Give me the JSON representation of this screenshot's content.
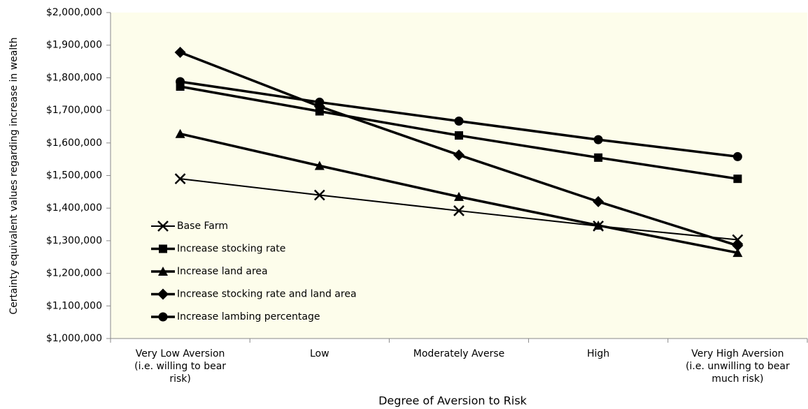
{
  "chart_data": {
    "type": "line",
    "y_label": "Certainty equivalent values regarding increase in wealth",
    "x_label": "Degree of Aversion to Risk",
    "categories": [
      [
        "Very Low Aversion",
        "(i.e. willing to bear",
        "risk)"
      ],
      [
        "Low"
      ],
      [
        "Moderately Averse"
      ],
      [
        "High"
      ],
      [
        "Very High Aversion",
        "(i.e. unwilling to bear",
        "much risk)"
      ]
    ],
    "series": [
      {
        "name": "Base Farm",
        "color": "#000000",
        "marker": "x",
        "linewidth": 2,
        "values": [
          1490000,
          1440000,
          1392000,
          1345000,
          1303000
        ]
      },
      {
        "name": "Increase stocking rate",
        "color": "#000000",
        "marker": "square",
        "linewidth": 3.5,
        "values": [
          1773000,
          1697000,
          1623000,
          1555000,
          1490000
        ]
      },
      {
        "name": "Increase land area",
        "color": "#000000",
        "marker": "triangle",
        "linewidth": 3.5,
        "values": [
          1628000,
          1530000,
          1435000,
          1347000,
          1263000
        ]
      },
      {
        "name": "Increase stocking rate and land area",
        "color": "#000000",
        "marker": "diamond",
        "linewidth": 3.5,
        "values": [
          1878000,
          1712000,
          1563000,
          1420000,
          1285000
        ]
      },
      {
        "name": "Increase lambing percentage",
        "color": "#000000",
        "marker": "circle",
        "linewidth": 3.5,
        "values": [
          1788000,
          1725000,
          1667000,
          1610000,
          1558000
        ]
      }
    ],
    "ylim": [
      1000000,
      2000000
    ],
    "yticks": [
      {
        "value": 1000000,
        "label": "$1,000,000"
      },
      {
        "value": 1100000,
        "label": "$1,100,000"
      },
      {
        "value": 1200000,
        "label": "$1,200,000"
      },
      {
        "value": 1300000,
        "label": "$1,300,000"
      },
      {
        "value": 1400000,
        "label": "$1,400,000"
      },
      {
        "value": 1500000,
        "label": "$1,500,000"
      },
      {
        "value": 1600000,
        "label": "$1,600,000"
      },
      {
        "value": 1700000,
        "label": "$1,700,000"
      },
      {
        "value": 1800000,
        "label": "$1,800,000"
      },
      {
        "value": 1900000,
        "label": "$1,900,000"
      },
      {
        "value": 2000000,
        "label": "$2,000,000"
      }
    ],
    "plot_background": "#fdfdeb",
    "legend": "lower-left"
  }
}
